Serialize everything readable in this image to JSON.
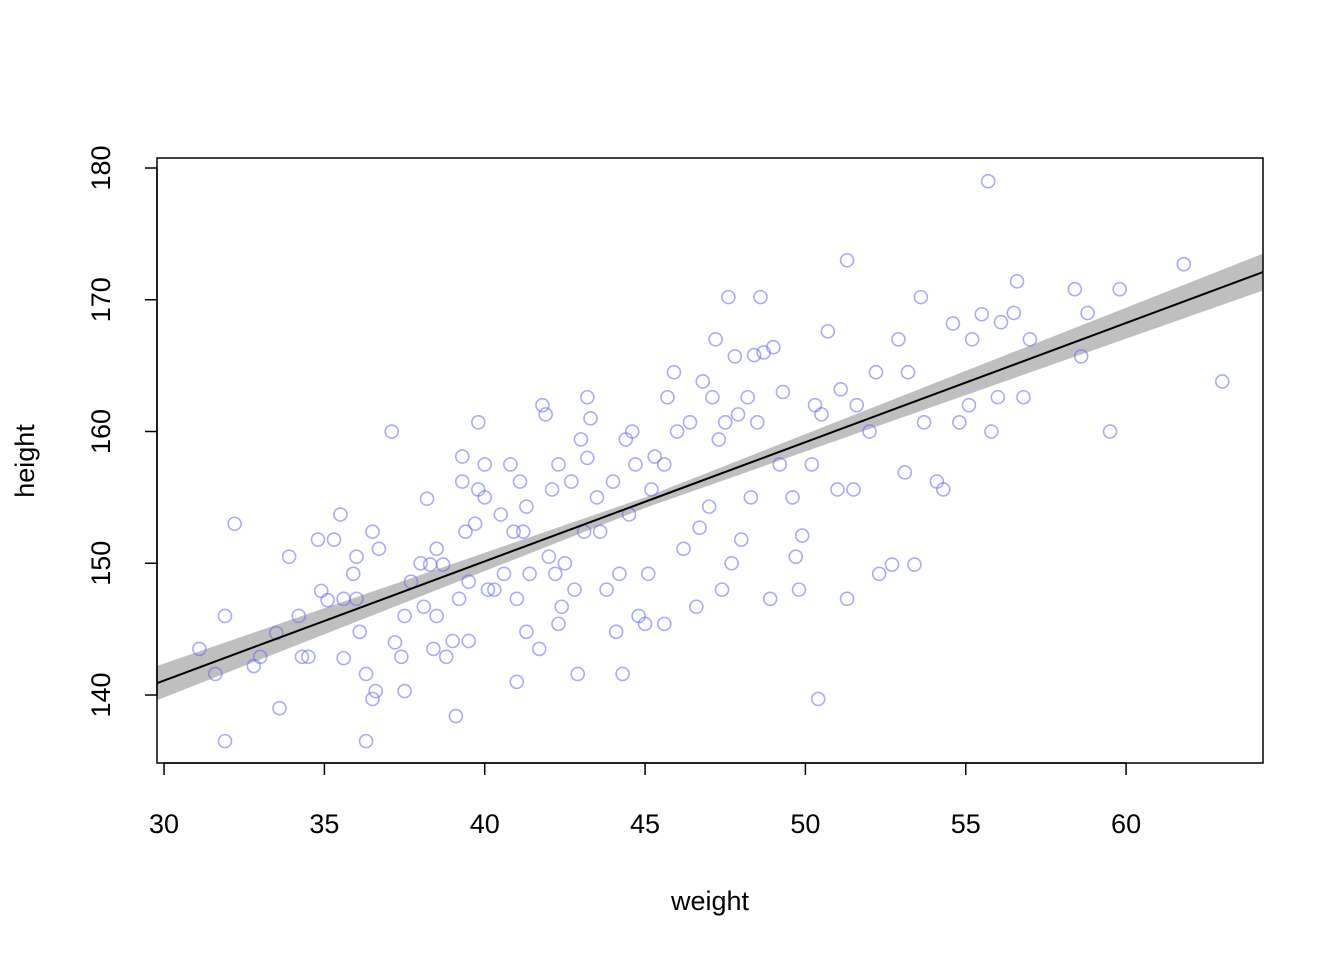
{
  "chart_data": {
    "type": "scatter",
    "xlabel": "weight",
    "ylabel": "height",
    "xlim": [
      29.78,
      64.27
    ],
    "ylim": [
      134.84,
      180.76
    ],
    "xticks": [
      30,
      35,
      40,
      45,
      50,
      55,
      60
    ],
    "yticks": [
      140,
      150,
      160,
      170,
      180
    ],
    "points": {
      "color": "#6464ff",
      "x": [
        31.1,
        31.6,
        31.9,
        31.9,
        32.2,
        32.8,
        33,
        33.5,
        33.6,
        33.9,
        34.2,
        34.3,
        34.5,
        34.8,
        34.9,
        35.1,
        35.3,
        35.5,
        35.6,
        35.6,
        35.9,
        36,
        36,
        36.1,
        36.3,
        36.3,
        36.5,
        36.5,
        36.6,
        36.7,
        37.1,
        37.2,
        37.4,
        37.5,
        37.5,
        37.7,
        38,
        38.1,
        38.2,
        38.3,
        38.4,
        38.5,
        38.5,
        38.7,
        38.8,
        39,
        39.1,
        39.2,
        39.3,
        39.3,
        39.4,
        39.5,
        39.5,
        39.7,
        39.8,
        39.8,
        40,
        40,
        40.1,
        40.3,
        40.5,
        40.6,
        40.8,
        40.9,
        41,
        41,
        41.1,
        41.2,
        41.3,
        41.3,
        41.4,
        41.7,
        41.8,
        41.9,
        42,
        42.1,
        42.2,
        42.3,
        42.3,
        42.4,
        42.5,
        42.7,
        42.8,
        42.9,
        43,
        43.1,
        43.2,
        43.2,
        43.3,
        43.5,
        43.6,
        43.8,
        44,
        44.1,
        44.2,
        44.3,
        44.4,
        44.5,
        44.6,
        44.7,
        44.8,
        45,
        45.1,
        45.2,
        45.3,
        45.6,
        45.6,
        45.7,
        45.9,
        46,
        46.2,
        46.4,
        46.6,
        46.7,
        46.8,
        47,
        47.1,
        47.2,
        47.3,
        47.4,
        47.5,
        47.6,
        47.7,
        47.8,
        47.9,
        48,
        48.2,
        48.3,
        48.4,
        48.5,
        48.6,
        48.7,
        48.9,
        49,
        49.2,
        49.3,
        49.6,
        49.7,
        49.8,
        49.9,
        50.2,
        50.3,
        50.4,
        50.5,
        50.7,
        51,
        51.1,
        51.3,
        51.3,
        51.5,
        51.6,
        52,
        52.2,
        52.3,
        52.7,
        52.9,
        53.1,
        53.2,
        53.4,
        53.6,
        53.7,
        54.1,
        54.3,
        54.6,
        54.8,
        55.1,
        55.2,
        55.5,
        55.7,
        55.8,
        56,
        56.1,
        56.5,
        56.6,
        56.8,
        57,
        58.4,
        58.6,
        58.8,
        59.5,
        59.8,
        61.8,
        63
      ],
      "y": [
        143.5,
        141.6,
        146,
        136.5,
        153,
        142.2,
        142.9,
        144.7,
        139,
        150.5,
        146,
        142.9,
        142.9,
        151.8,
        147.9,
        147.2,
        151.8,
        153.7,
        147.3,
        142.8,
        149.2,
        150.5,
        147.3,
        144.8,
        141.6,
        136.5,
        139.7,
        152.4,
        140.3,
        151.1,
        160,
        144,
        142.9,
        140.3,
        146,
        148.6,
        150,
        146.7,
        154.9,
        149.9,
        143.5,
        151.1,
        146,
        149.9,
        142.9,
        144.1,
        138.4,
        147.3,
        156.2,
        158.1,
        152.4,
        148.6,
        144.1,
        153,
        155.6,
        160.7,
        155,
        157.5,
        148,
        148,
        153.7,
        149.2,
        157.5,
        152.4,
        147.3,
        141,
        156.2,
        152.4,
        144.8,
        154.3,
        149.2,
        143.5,
        162,
        161.3,
        150.5,
        155.6,
        149.2,
        145.4,
        157.5,
        146.7,
        150,
        156.2,
        148,
        141.6,
        159.4,
        152.4,
        158,
        162.6,
        161,
        155,
        152.4,
        148,
        156.2,
        144.8,
        149.2,
        141.6,
        159.4,
        153.7,
        160,
        157.5,
        146,
        145.4,
        149.2,
        155.6,
        158.1,
        157.5,
        145.4,
        162.6,
        164.5,
        160,
        151.1,
        160.7,
        146.7,
        152.7,
        163.8,
        154.3,
        162.6,
        167,
        159.4,
        148,
        160.7,
        170.2,
        150,
        165.7,
        161.3,
        151.8,
        162.6,
        155,
        165.8,
        160.7,
        170.2,
        166,
        147.3,
        166.4,
        157.5,
        163,
        155,
        150.5,
        148,
        152.1,
        157.5,
        162,
        139.7,
        161.3,
        167.6,
        155.6,
        163.2,
        173,
        147.3,
        155.6,
        162,
        160,
        164.5,
        149.2,
        149.9,
        167,
        156.9,
        164.5,
        149.9,
        170.2,
        160.7,
        156.2,
        155.6,
        168.2,
        160.7,
        162,
        167,
        168.9,
        179,
        160,
        162.6,
        168.3,
        169,
        171.4,
        162.6,
        167,
        170.8,
        165.7,
        169,
        160,
        170.8,
        172.7,
        163.8
      ]
    },
    "band": {
      "color": "#bfbfbf",
      "x": [
        29.78,
        45,
        64.27
      ],
      "lower": [
        139.6,
        154.2,
        170.7
      ],
      "upper": [
        142.2,
        155.0,
        173.5
      ]
    },
    "fit": {
      "color": "#000000",
      "x": [
        29.78,
        64.27
      ],
      "values": [
        140.9,
        172.1
      ]
    }
  }
}
